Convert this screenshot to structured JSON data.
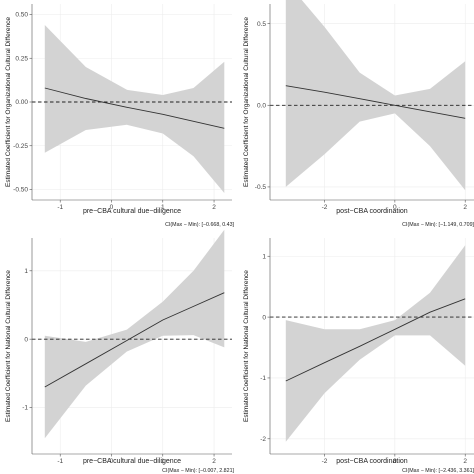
{
  "chart_data": [
    {
      "type": "line",
      "xlabel": "pre−CBA cultural due−diligence",
      "ylabel": "Estimated Coefficient for Organizational Cultural Difference",
      "note": "CI(Max − Min): [−0.668, 0.43]",
      "xlim": [
        -1.55,
        2.35
      ],
      "ylim": [
        -0.56,
        0.56
      ],
      "xticks": [
        -1,
        0,
        1,
        2
      ],
      "yticks": [
        -0.5,
        -0.25,
        0.0,
        0.25,
        0.5
      ],
      "yticklabels": [
        "-0.50",
        "-0.25",
        "0.00",
        "0.25",
        "0.50"
      ],
      "reference_line": 0,
      "series": [
        {
          "x": [
            -1.3,
            -0.5,
            0.3,
            1.0,
            1.6,
            2.2
          ],
          "y": [
            0.08,
            0.02,
            -0.03,
            -0.07,
            -0.11,
            -0.15
          ],
          "lower": [
            -0.29,
            -0.16,
            -0.13,
            -0.18,
            -0.31,
            -0.52
          ],
          "upper": [
            0.44,
            0.2,
            0.07,
            0.04,
            0.08,
            0.23
          ]
        }
      ]
    },
    {
      "type": "line",
      "xlabel": "post−CBA coordination",
      "ylabel": "Estimated Coefficient for Organizational Cultural Difference",
      "note": "CI(Max − Min): [−1.149, 0.709]",
      "xlim": [
        -3.55,
        2.25
      ],
      "ylim": [
        -0.58,
        0.62
      ],
      "xticks": [
        -2,
        0,
        2
      ],
      "yticks": [
        -0.5,
        0.0,
        0.5
      ],
      "yticklabels": [
        "-0.5",
        "0.0",
        "0.5"
      ],
      "reference_line": 0,
      "series": [
        {
          "x": [
            -3.1,
            -2.0,
            -1.0,
            0.0,
            1.0,
            2.0
          ],
          "y": [
            0.12,
            0.08,
            0.04,
            0.0,
            -0.04,
            -0.08
          ],
          "lower": [
            -0.5,
            -0.3,
            -0.1,
            -0.05,
            -0.25,
            -0.52
          ],
          "upper": [
            0.76,
            0.48,
            0.2,
            0.06,
            0.1,
            0.27
          ]
        }
      ]
    },
    {
      "type": "line",
      "xlabel": "pre−CBA cultural due−diligence",
      "ylabel": "Estimated Coefficient for National Cultural Difference",
      "note": "CI(Max − Min): [−0.007, 2.821]",
      "xlim": [
        -1.55,
        2.35
      ],
      "ylim": [
        -1.68,
        1.48
      ],
      "xticks": [
        -1,
        0,
        1,
        2
      ],
      "yticks": [
        -1,
        0,
        1
      ],
      "yticklabels": [
        "-1",
        "0",
        "1"
      ],
      "reference_line": 0,
      "series": [
        {
          "x": [
            -1.3,
            -0.5,
            0.3,
            1.0,
            1.6,
            2.2
          ],
          "y": [
            -0.7,
            -0.36,
            -0.02,
            0.28,
            0.48,
            0.68
          ],
          "lower": [
            -1.45,
            -0.68,
            -0.18,
            0.05,
            0.06,
            -0.12
          ],
          "upper": [
            0.05,
            -0.04,
            0.14,
            0.55,
            1.0,
            1.6
          ]
        }
      ]
    },
    {
      "type": "line",
      "xlabel": "post−CBA coordination",
      "ylabel": "Estimated Coefficient for National Cultural Difference",
      "note": "CI(Max − Min): [−2.436, 3.361]",
      "xlim": [
        -3.55,
        2.25
      ],
      "ylim": [
        -2.25,
        1.3
      ],
      "xticks": [
        -2,
        0,
        2
      ],
      "yticks": [
        -2,
        -1,
        0,
        1
      ],
      "yticklabels": [
        "-2",
        "-1",
        "0",
        "1"
      ],
      "reference_line": 0,
      "series": [
        {
          "x": [
            -3.1,
            -2.0,
            -1.0,
            0.0,
            1.0,
            2.0
          ],
          "y": [
            -1.05,
            -0.75,
            -0.48,
            -0.2,
            0.08,
            0.3
          ],
          "lower": [
            -2.05,
            -1.25,
            -0.7,
            -0.3,
            -0.3,
            -0.8
          ],
          "upper": [
            -0.05,
            -0.2,
            -0.2,
            -0.05,
            0.4,
            1.18
          ]
        }
      ]
    }
  ]
}
